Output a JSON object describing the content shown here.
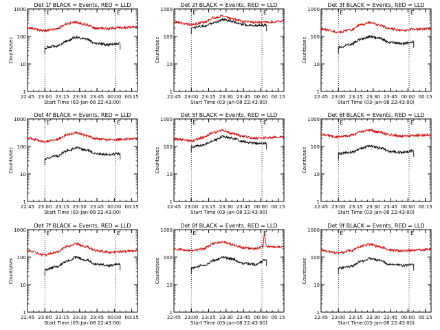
{
  "chart_data": [
    {
      "type": "line",
      "detector": "1f",
      "title": "Det 1f BLACK = Events, RED = LLD",
      "xlabel": "Start Time (03-Jan-08 22:43:00)",
      "ylabel": "Counts/sec",
      "ylog": true,
      "ylim": [
        1,
        1000
      ],
      "xlim": [
        "22:45",
        "00:20"
      ],
      "x_ticks": [
        "22:45",
        "23:00",
        "23:15",
        "23:30",
        "23:45",
        "00:00",
        "00:15"
      ],
      "y_ticks": [
        "1",
        "10",
        "100",
        "1000"
      ],
      "markers": [
        {
          "label": "E",
          "time": "23:00"
        },
        {
          "label": "E",
          "time": "00:01"
        }
      ],
      "series": [
        {
          "color": "#d00000",
          "start": "22:45",
          "end": "00:20",
          "times": [
            "22:45",
            "23:00",
            "23:10",
            "23:20",
            "23:27",
            "23:35",
            "23:45",
            "23:55",
            "00:05",
            "00:20"
          ],
          "values": [
            210,
            160,
            190,
            290,
            330,
            270,
            200,
            190,
            210,
            220
          ]
        },
        {
          "color": "#000000",
          "start": "23:00",
          "end": "00:05",
          "times": [
            "23:00",
            "23:10",
            "23:20",
            "23:27",
            "23:35",
            "23:45",
            "23:55",
            "00:05"
          ],
          "values": [
            40,
            45,
            70,
            95,
            80,
            55,
            50,
            55
          ]
        }
      ]
    },
    {
      "type": "line",
      "detector": "2f",
      "title": "Det 2f BLACK = Events, RED = LLD",
      "xlabel": "Start Time (03-Jan-08 22:43:00)",
      "ylabel": "Counts/sec",
      "ylog": true,
      "ylim": [
        1,
        1000
      ],
      "xlim": [
        "22:45",
        "00:20"
      ],
      "x_ticks": [
        "22:45",
        "23:00",
        "23:15",
        "23:30",
        "23:45",
        "00:00",
        "00:15"
      ],
      "y_ticks": [
        "1",
        "10",
        "100",
        "1000"
      ],
      "markers": [
        {
          "label": "E",
          "time": "23:00"
        },
        {
          "label": "E",
          "time": "00:01"
        }
      ],
      "series": [
        {
          "color": "#d00000",
          "start": "22:45",
          "end": "00:20",
          "times": [
            "22:45",
            "23:00",
            "23:10",
            "23:20",
            "23:27",
            "23:35",
            "23:45",
            "23:55",
            "00:05",
            "00:20"
          ],
          "values": [
            340,
            270,
            320,
            480,
            560,
            450,
            350,
            320,
            330,
            350
          ]
        },
        {
          "color": "#000000",
          "start": "23:00",
          "end": "00:05",
          "times": [
            "23:00",
            "23:10",
            "23:20",
            "23:27",
            "23:35",
            "23:45",
            "23:55",
            "00:05"
          ],
          "values": [
            210,
            240,
            320,
            400,
            350,
            270,
            250,
            260
          ]
        }
      ]
    },
    {
      "type": "line",
      "detector": "3f",
      "title": "Det 3f BLACK = Events, RED = LLD",
      "xlabel": "Start Time (03-Jan-08 22:43:00)",
      "ylabel": "Counts/sec",
      "ylog": true,
      "ylim": [
        1,
        1000
      ],
      "xlim": [
        "22:45",
        "00:20"
      ],
      "x_ticks": [
        "22:45",
        "23:00",
        "23:15",
        "23:30",
        "23:45",
        "00:00",
        "00:15"
      ],
      "y_ticks": [
        "1",
        "10",
        "100",
        "1000"
      ],
      "markers": [
        {
          "label": "E",
          "time": "23:00"
        },
        {
          "label": "E",
          "time": "00:01"
        }
      ],
      "series": [
        {
          "color": "#d00000",
          "start": "22:45",
          "end": "00:20",
          "times": [
            "22:45",
            "23:00",
            "23:10",
            "23:20",
            "23:27",
            "23:35",
            "23:45",
            "23:55",
            "00:05",
            "00:20"
          ],
          "values": [
            190,
            140,
            170,
            270,
            320,
            260,
            190,
            170,
            180,
            190
          ]
        },
        {
          "color": "#000000",
          "start": "23:00",
          "end": "00:05",
          "times": [
            "23:00",
            "23:10",
            "23:20",
            "23:27",
            "23:35",
            "23:45",
            "23:55",
            "00:05"
          ],
          "values": [
            40,
            50,
            80,
            100,
            85,
            60,
            55,
            65
          ]
        }
      ]
    },
    {
      "type": "line",
      "detector": "4f",
      "title": "Det 4f BLACK = Events, RED = LLD",
      "xlabel": "Start Time (03-Jan-08 22:43:00)",
      "ylabel": "Counts/sec",
      "ylog": true,
      "ylim": [
        1,
        1000
      ],
      "xlim": [
        "22:45",
        "00:20"
      ],
      "x_ticks": [
        "22:45",
        "23:00",
        "23:15",
        "23:30",
        "23:45",
        "00:00",
        "00:15"
      ],
      "y_ticks": [
        "1",
        "10",
        "100",
        "1000"
      ],
      "markers": [
        {
          "label": "E",
          "time": "23:00"
        },
        {
          "label": "E",
          "time": "00:01"
        }
      ],
      "series": [
        {
          "color": "#d00000",
          "start": "22:45",
          "end": "00:20",
          "times": [
            "22:45",
            "23:00",
            "23:10",
            "23:20",
            "23:27",
            "23:35",
            "23:45",
            "23:55",
            "00:05",
            "00:20"
          ],
          "values": [
            200,
            150,
            180,
            270,
            310,
            250,
            190,
            170,
            180,
            190
          ]
        },
        {
          "color": "#000000",
          "start": "23:00",
          "end": "00:05",
          "times": [
            "23:00",
            "23:10",
            "23:20",
            "23:27",
            "23:35",
            "23:45",
            "23:55",
            "00:05"
          ],
          "values": [
            35,
            45,
            70,
            90,
            75,
            55,
            50,
            55
          ]
        }
      ]
    },
    {
      "type": "line",
      "detector": "5f",
      "title": "Det 5f BLACK = Events, RED = LLD",
      "xlabel": "Start Time (03-Jan-08 22:43:00)",
      "ylabel": "Counts/sec",
      "ylog": true,
      "ylim": [
        1,
        1000
      ],
      "xlim": [
        "22:45",
        "00:20"
      ],
      "x_ticks": [
        "22:45",
        "23:00",
        "23:15",
        "23:30",
        "23:45",
        "00:00",
        "00:15"
      ],
      "y_ticks": [
        "1",
        "10",
        "100",
        "1000"
      ],
      "markers": [
        {
          "label": "E",
          "time": "23:00"
        },
        {
          "label": "E",
          "time": "00:01"
        }
      ],
      "series": [
        {
          "color": "#d00000",
          "start": "22:45",
          "end": "00:20",
          "times": [
            "22:45",
            "23:00",
            "23:10",
            "23:20",
            "23:27",
            "23:35",
            "23:45",
            "23:55",
            "00:05",
            "00:20"
          ],
          "values": [
            190,
            160,
            210,
            330,
            380,
            300,
            230,
            200,
            210,
            220
          ]
        },
        {
          "color": "#000000",
          "start": "23:00",
          "end": "00:05",
          "times": [
            "23:00",
            "23:10",
            "23:20",
            "23:27",
            "23:35",
            "23:45",
            "23:55",
            "00:05"
          ],
          "values": [
            100,
            110,
            170,
            230,
            200,
            150,
            130,
            130
          ]
        }
      ]
    },
    {
      "type": "line",
      "detector": "6f",
      "title": "Det 6f BLACK = Events, RED = LLD",
      "xlabel": "Start Time (03-Jan-08 22:43:00)",
      "ylabel": "Counts/sec",
      "ylog": true,
      "ylim": [
        1,
        1000
      ],
      "xlim": [
        "22:45",
        "00:20"
      ],
      "x_ticks": [
        "22:45",
        "23:00",
        "23:15",
        "23:30",
        "23:45",
        "00:00",
        "00:15"
      ],
      "y_ticks": [
        "1",
        "10",
        "100",
        "1000"
      ],
      "markers": [
        {
          "label": "E",
          "time": "23:00"
        },
        {
          "label": "E",
          "time": "00:01"
        }
      ],
      "series": [
        {
          "color": "#d00000",
          "start": "22:45",
          "end": "00:20",
          "times": [
            "22:45",
            "23:00",
            "23:10",
            "23:20",
            "23:27",
            "23:35",
            "23:45",
            "23:55",
            "00:05",
            "00:20"
          ],
          "values": [
            270,
            220,
            250,
            350,
            390,
            330,
            260,
            240,
            250,
            260
          ]
        },
        {
          "color": "#000000",
          "start": "23:00",
          "end": "00:05",
          "times": [
            "23:00",
            "23:10",
            "23:20",
            "23:27",
            "23:35",
            "23:45",
            "23:55",
            "00:05"
          ],
          "values": [
            55,
            60,
            85,
            105,
            90,
            65,
            60,
            70
          ]
        }
      ]
    },
    {
      "type": "line",
      "detector": "7f",
      "title": "Det 7f BLACK = Events, RED = LLD",
      "xlabel": "Start Time (03-Jan-08 22:43:00)",
      "ylabel": "Counts/sec",
      "ylog": true,
      "ylim": [
        1,
        1000
      ],
      "xlim": [
        "22:45",
        "00:20"
      ],
      "x_ticks": [
        "22:45",
        "23:00",
        "23:15",
        "23:30",
        "23:45",
        "00:00",
        "00:15"
      ],
      "y_ticks": [
        "1",
        "10",
        "100",
        "1000"
      ],
      "markers": [
        {
          "label": "E",
          "time": "23:00"
        },
        {
          "label": "E",
          "time": "00:01"
        }
      ],
      "series": [
        {
          "color": "#d00000",
          "start": "22:45",
          "end": "00:20",
          "times": [
            "22:45",
            "23:00",
            "23:10",
            "23:20",
            "23:27",
            "23:35",
            "23:45",
            "23:55",
            "00:05",
            "00:20"
          ],
          "values": [
            170,
            120,
            150,
            250,
            300,
            240,
            170,
            150,
            160,
            170
          ]
        },
        {
          "color": "#000000",
          "start": "23:00",
          "end": "00:05",
          "times": [
            "23:00",
            "23:10",
            "23:20",
            "23:27",
            "23:35",
            "23:45",
            "23:55",
            "00:05"
          ],
          "values": [
            35,
            45,
            75,
            100,
            80,
            55,
            50,
            55
          ]
        }
      ]
    },
    {
      "type": "line",
      "detector": "8f",
      "title": "Det 8f BLACK = Events, RED = LLD",
      "xlabel": "Start Time (03-Jan-08 22:43:00)",
      "ylabel": "Counts/sec",
      "ylog": true,
      "ylim": [
        1,
        1000
      ],
      "xlim": [
        "22:45",
        "00:20"
      ],
      "x_ticks": [
        "22:45",
        "23:00",
        "23:15",
        "23:30",
        "23:45",
        "00:00",
        "00:15"
      ],
      "y_ticks": [
        "1",
        "10",
        "100",
        "1000"
      ],
      "markers": [
        {
          "label": "E",
          "time": "23:00"
        },
        {
          "label": "E",
          "time": "00:01"
        }
      ],
      "series": [
        {
          "color": "#d00000",
          "start": "22:45",
          "end": "00:20",
          "times": [
            "22:45",
            "23:00",
            "23:10",
            "23:20",
            "23:27",
            "23:35",
            "23:45",
            "23:55",
            "00:02",
            "00:03",
            "00:05",
            "00:20"
          ],
          "values": [
            200,
            170,
            200,
            310,
            370,
            290,
            220,
            200,
            240,
            680,
            240,
            230
          ]
        },
        {
          "color": "#000000",
          "start": "23:00",
          "end": "00:05",
          "times": [
            "23:00",
            "23:10",
            "23:20",
            "23:27",
            "23:35",
            "23:45",
            "23:55",
            "00:05"
          ],
          "values": [
            40,
            50,
            75,
            100,
            85,
            60,
            55,
            80
          ]
        }
      ]
    },
    {
      "type": "line",
      "detector": "9f",
      "title": "Det 9f BLACK = Events, RED = LLD",
      "xlabel": "Start Time (03-Jan-08 22:43:00)",
      "ylabel": "Counts/sec",
      "ylog": true,
      "ylim": [
        1,
        1000
      ],
      "xlim": [
        "22:45",
        "00:20"
      ],
      "x_ticks": [
        "22:45",
        "23:00",
        "23:15",
        "23:30",
        "23:45",
        "00:00",
        "00:15"
      ],
      "y_ticks": [
        "1",
        "10",
        "100",
        "1000"
      ],
      "markers": [
        {
          "label": "E",
          "time": "23:00"
        },
        {
          "label": "E",
          "time": "00:01"
        }
      ],
      "series": [
        {
          "color": "#d00000",
          "start": "22:45",
          "end": "00:20",
          "times": [
            "22:45",
            "23:00",
            "23:10",
            "23:20",
            "23:27",
            "23:35",
            "23:45",
            "23:55",
            "00:05",
            "00:20"
          ],
          "values": [
            180,
            140,
            170,
            250,
            290,
            240,
            180,
            170,
            180,
            190
          ]
        },
        {
          "color": "#000000",
          "start": "23:00",
          "end": "00:05",
          "times": [
            "23:00",
            "23:10",
            "23:20",
            "23:27",
            "23:35",
            "23:45",
            "23:55",
            "00:05"
          ],
          "values": [
            40,
            45,
            70,
            90,
            75,
            55,
            50,
            55
          ]
        }
      ]
    }
  ]
}
